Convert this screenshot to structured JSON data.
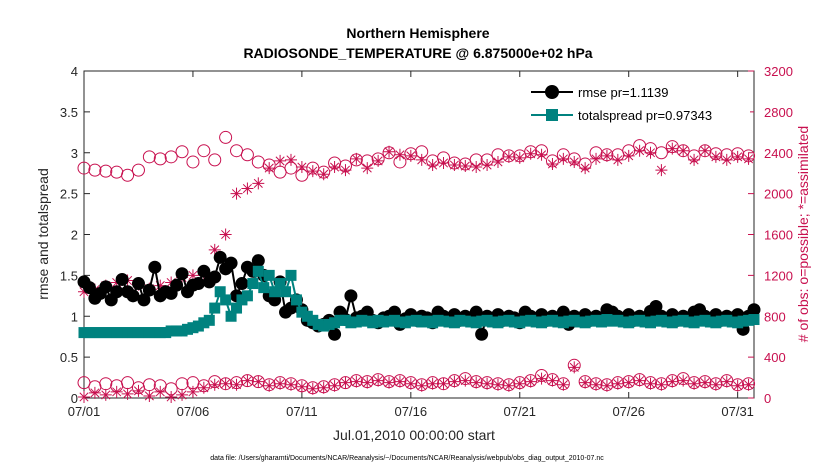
{
  "chart_data": {
    "type": "line",
    "title": "Northern Hemisphere",
    "subtitle": "RADIOSONDE_TEMPERATURE @ 6.875000e+02 hPa",
    "xlabel": "Jul.01,2010 00:00:00 start",
    "ylabel": "rmse and totalspread",
    "y2label": "# of obs: o=possible; *=assimilated",
    "xlim": [
      0,
      30.75
    ],
    "ylim": [
      0,
      4
    ],
    "y2lim": [
      0,
      3200
    ],
    "x_ticks": [
      0,
      5,
      10,
      15,
      20,
      25,
      30
    ],
    "x_tick_labels": [
      "07/01",
      "07/06",
      "07/11",
      "07/16",
      "07/21",
      "07/26",
      "07/31"
    ],
    "y_ticks": [
      "0",
      "0.5",
      "1",
      "1.5",
      "2",
      "2.5",
      "3",
      "3.5",
      "4"
    ],
    "y2_ticks": [
      "0",
      "400",
      "800",
      "1200",
      "1600",
      "2000",
      "2400",
      "2800",
      "3200"
    ],
    "legend": [
      "rmse pr=1.1139",
      "totalspread pr=0.97343"
    ],
    "legend_position": "top-right",
    "footnote": "data file: /Users/gharamti/Documents/NCAR/Reanalysis/~/Documents/NCAR/Reanalysis/webpub/obs_diag_output_2010-07.nc",
    "colors": {
      "rmse": "#000000",
      "totalspread": "#00827f",
      "obs_count": "#c8104f",
      "axis": "#262626"
    },
    "series": [
      {
        "name": "rmse pr=1.1139",
        "x": [
          0,
          0.25,
          0.5,
          0.75,
          1,
          1.25,
          1.5,
          1.75,
          2,
          2.25,
          2.5,
          2.75,
          3,
          3.25,
          3.5,
          3.75,
          4,
          4.25,
          4.5,
          4.75,
          5,
          5.25,
          5.5,
          5.75,
          6,
          6.25,
          6.5,
          6.75,
          7,
          7.25,
          7.5,
          7.75,
          8,
          8.25,
          8.5,
          8.75,
          9,
          9.25,
          9.5,
          9.75,
          10,
          10.25,
          10.5,
          10.75,
          11,
          11.25,
          11.5,
          11.75,
          12,
          12.25,
          12.5,
          12.75,
          13,
          13.25,
          13.5,
          13.75,
          14,
          14.25,
          14.5,
          14.75,
          15,
          15.25,
          15.5,
          15.75,
          16,
          16.25,
          16.5,
          16.75,
          17,
          17.25,
          17.5,
          17.75,
          18,
          18.25,
          18.5,
          18.75,
          19,
          19.25,
          19.5,
          19.75,
          20,
          20.25,
          20.5,
          20.75,
          21,
          21.25,
          21.5,
          21.75,
          22,
          22.25,
          22.5,
          22.75,
          23,
          23.25,
          23.5,
          23.75,
          24,
          24.25,
          24.5,
          24.75,
          25,
          25.25,
          25.5,
          25.75,
          26,
          26.25,
          26.5,
          26.75,
          27,
          27.25,
          27.5,
          27.75,
          28,
          28.25,
          28.5,
          28.75,
          29,
          29.25,
          29.5,
          29.75,
          30,
          30.25,
          30.5,
          30.75
        ],
        "values": [
          1.42,
          1.35,
          1.22,
          1.28,
          1.36,
          1.2,
          1.3,
          1.45,
          1.3,
          1.25,
          1.4,
          1.2,
          1.32,
          1.6,
          1.25,
          1.3,
          1.28,
          1.38,
          1.52,
          1.3,
          1.38,
          1.4,
          1.55,
          1.42,
          1.48,
          1.72,
          1.58,
          1.65,
          1.25,
          1.4,
          1.6,
          1.55,
          1.68,
          1.5,
          1.25,
          1.2,
          1.42,
          1.05,
          1.1,
          1.2,
          1.08,
          0.95,
          0.92,
          0.88,
          0.9,
          0.95,
          0.78,
          1.05,
          0.96,
          1.25,
          0.98,
          1.0,
          1.05,
          0.95,
          0.92,
          0.98,
          1.0,
          1.05,
          0.9,
          0.97,
          1.02,
          0.95,
          1.0,
          0.98,
          0.92,
          1.05,
          1.0,
          0.97,
          1.02,
          0.95,
          1.0,
          0.98,
          1.05,
          0.78,
          1.0,
          0.97,
          1.02,
          0.95,
          1.0,
          0.98,
          0.92,
          1.05,
          1.0,
          0.97,
          1.02,
          0.95,
          1.0,
          0.98,
          1.05,
          0.9,
          1.0,
          0.97,
          1.02,
          0.95,
          1.0,
          0.98,
          1.08,
          1.05,
          1.0,
          0.97,
          1.02,
          0.95,
          1.0,
          0.98,
          1.06,
          1.12,
          1.0,
          0.97,
          1.02,
          0.95,
          1.0,
          0.98,
          1.05,
          1.08,
          1.0,
          0.97,
          1.02,
          0.95,
          1.0,
          0.98,
          1.02,
          0.84,
          1.0,
          1.08
        ]
      },
      {
        "name": "totalspread pr=0.97343",
        "x": [
          0,
          0.25,
          0.5,
          0.75,
          1,
          1.25,
          1.5,
          1.75,
          2,
          2.25,
          2.5,
          2.75,
          3,
          3.25,
          3.5,
          3.75,
          4,
          4.25,
          4.5,
          4.75,
          5,
          5.25,
          5.5,
          5.75,
          6,
          6.25,
          6.5,
          6.75,
          7,
          7.25,
          7.5,
          7.75,
          8,
          8.25,
          8.5,
          8.75,
          9,
          9.25,
          9.5,
          9.75,
          10,
          10.25,
          10.5,
          10.75,
          11,
          11.25,
          11.5,
          11.75,
          12,
          12.25,
          12.5,
          12.75,
          13,
          13.25,
          13.5,
          13.75,
          14,
          14.25,
          14.5,
          14.75,
          15,
          15.25,
          15.5,
          15.75,
          16,
          16.25,
          16.5,
          16.75,
          17,
          17.25,
          17.5,
          17.75,
          18,
          18.25,
          18.5,
          18.75,
          19,
          19.25,
          19.5,
          19.75,
          20,
          20.25,
          20.5,
          20.75,
          21,
          21.25,
          21.5,
          21.75,
          22,
          22.25,
          22.5,
          22.75,
          23,
          23.25,
          23.5,
          23.75,
          24,
          24.25,
          24.5,
          24.75,
          25,
          25.25,
          25.5,
          25.75,
          26,
          26.25,
          26.5,
          26.75,
          27,
          27.25,
          27.5,
          27.75,
          28,
          28.25,
          28.5,
          28.75,
          29,
          29.25,
          29.5,
          29.75,
          30,
          30.25,
          30.5,
          30.75
        ],
        "values": [
          0.8,
          0.8,
          0.8,
          0.8,
          0.8,
          0.8,
          0.8,
          0.8,
          0.8,
          0.8,
          0.8,
          0.8,
          0.8,
          0.8,
          0.8,
          0.8,
          0.82,
          0.82,
          0.82,
          0.84,
          0.86,
          0.88,
          0.92,
          0.95,
          1.1,
          1.3,
          1.2,
          1.0,
          1.1,
          1.2,
          1.25,
          1.4,
          1.55,
          1.35,
          1.5,
          1.3,
          1.4,
          1.3,
          1.5,
          1.2,
          1.05,
          1.0,
          0.95,
          0.9,
          0.88,
          0.9,
          0.92,
          0.95,
          0.95,
          0.92,
          0.93,
          0.95,
          0.94,
          0.92,
          0.95,
          0.93,
          0.94,
          0.95,
          0.93,
          0.92,
          0.94,
          0.95,
          0.93,
          0.94,
          0.92,
          0.95,
          0.94,
          0.93,
          0.92,
          0.95,
          0.94,
          0.93,
          0.92,
          0.94,
          0.95,
          0.93,
          0.92,
          0.94,
          0.95,
          0.93,
          0.92,
          0.94,
          0.95,
          0.93,
          0.92,
          0.94,
          0.95,
          0.93,
          0.92,
          0.94,
          0.95,
          0.93,
          0.92,
          0.94,
          0.95,
          0.93,
          0.96,
          0.94,
          0.95,
          0.93,
          0.92,
          0.94,
          0.95,
          0.93,
          0.92,
          0.94,
          0.95,
          0.93,
          0.92,
          0.94,
          0.95,
          0.93,
          0.92,
          0.94,
          0.95,
          0.93,
          0.92,
          0.94,
          0.95,
          0.93,
          0.92,
          0.94,
          0.95,
          0.96
        ]
      },
      {
        "name": "possible obs (o)",
        "axis": "right",
        "marker": "circle",
        "x": [
          0,
          0.5,
          1,
          1.5,
          2,
          2.5,
          3,
          3.5,
          4,
          4.5,
          5,
          5.5,
          6,
          6.5,
          7,
          7.5,
          8,
          8.5,
          9,
          9.5,
          10,
          10.5,
          11,
          11.5,
          12,
          12.5,
          13,
          13.5,
          14,
          14.5,
          15,
          15.5,
          16,
          16.5,
          17,
          17.5,
          18,
          18.5,
          19,
          19.5,
          20,
          20.5,
          21,
          21.5,
          22,
          22.5,
          23,
          23.5,
          24,
          24.5,
          25,
          25.5,
          26,
          26.5,
          27,
          27.5,
          28,
          28.5,
          29,
          29.5,
          30,
          30.5
        ],
        "values": [
          2250,
          2230,
          2220,
          2210,
          2180,
          2230,
          2360,
          2340,
          2360,
          2410,
          2310,
          2420,
          2330,
          2550,
          2420,
          2380,
          2310,
          2280,
          2210,
          2250,
          2180,
          2250,
          2210,
          2300,
          2270,
          2330,
          2320,
          2340,
          2400,
          2310,
          2390,
          2410,
          2320,
          2350,
          2300,
          2290,
          2330,
          2330,
          2380,
          2370,
          2370,
          2410,
          2420,
          2320,
          2380,
          2340,
          2290,
          2400,
          2380,
          2380,
          2420,
          2470,
          2440,
          2400,
          2460,
          2420,
          2370,
          2420,
          2390,
          2380,
          2390,
          2370
        ]
      },
      {
        "name": "assimilated obs (*)",
        "axis": "right",
        "marker": "star",
        "x": [
          0,
          0.5,
          1,
          1.5,
          2,
          2.5,
          3,
          3.5,
          4,
          4.5,
          5,
          5.5,
          6,
          6.5,
          7,
          7.5,
          8,
          8.5,
          9,
          9.5,
          10,
          10.5,
          11,
          11.5,
          12,
          12.5,
          13,
          13.5,
          14,
          14.5,
          15,
          15.5,
          16,
          16.5,
          17,
          17.5,
          18,
          18.5,
          19,
          19.5,
          20,
          20.5,
          21,
          21.5,
          22,
          22.5,
          23,
          23.5,
          24,
          24.5,
          25,
          25.5,
          26,
          26.5,
          27,
          27.5,
          28,
          28.5,
          29,
          29.5,
          30,
          30.5
        ],
        "values": [
          1040,
          1060,
          1100,
          1130,
          1150,
          1110,
          1070,
          1100,
          1130,
          1180,
          1200,
          1210,
          1450,
          1600,
          2000,
          2050,
          2100,
          2250,
          2320,
          2330,
          2260,
          2220,
          2190,
          2260,
          2230,
          2340,
          2250,
          2320,
          2410,
          2380,
          2370,
          2330,
          2280,
          2300,
          2280,
          2270,
          2260,
          2280,
          2310,
          2360,
          2350,
          2390,
          2380,
          2290,
          2340,
          2310,
          2250,
          2340,
          2370,
          2330,
          2370,
          2420,
          2400,
          2230,
          2440,
          2420,
          2330,
          2420,
          2360,
          2330,
          2360,
          2340
        ]
      },
      {
        "name": "possible obs (o) bottom",
        "axis": "right",
        "marker": "circle",
        "x": [
          0,
          0.5,
          1,
          1.5,
          2,
          2.5,
          3,
          3.5,
          4,
          4.5,
          5,
          5.5,
          6,
          6.5,
          7,
          7.5,
          8,
          8.5,
          9,
          9.5,
          10,
          10.5,
          11,
          11.5,
          12,
          12.5,
          13,
          13.5,
          14,
          14.5,
          15,
          15.5,
          16,
          16.5,
          17,
          17.5,
          18,
          18.5,
          19,
          19.5,
          20,
          20.5,
          21,
          21.5,
          22,
          22.5,
          23,
          23.5,
          24,
          24.5,
          25,
          25.5,
          26,
          26.5,
          27,
          27.5,
          28,
          28.5,
          29,
          29.5,
          30,
          30.5
        ],
        "values": [
          150,
          110,
          140,
          120,
          150,
          100,
          130,
          120,
          90,
          140,
          150,
          120,
          160,
          140,
          150,
          170,
          160,
          130,
          150,
          140,
          120,
          100,
          110,
          130,
          150,
          170,
          160,
          180,
          160,
          170,
          150,
          130,
          150,
          140,
          170,
          190,
          160,
          150,
          140,
          130,
          150,
          170,
          220,
          180,
          140,
          320,
          160,
          140,
          130,
          150,
          160,
          180,
          150,
          140,
          170,
          190,
          150,
          160,
          140,
          170,
          130,
          140
        ]
      },
      {
        "name": "assimilated obs (*) bottom",
        "axis": "right",
        "marker": "star",
        "x": [
          0,
          0.5,
          1,
          1.5,
          2,
          2.5,
          3,
          3.5,
          4,
          4.5,
          5,
          5.5,
          6,
          6.5,
          7,
          7.5,
          8,
          8.5,
          9,
          9.5,
          10,
          10.5,
          11,
          11.5,
          12,
          12.5,
          13,
          13.5,
          14,
          14.5,
          15,
          15.5,
          16,
          16.5,
          17,
          17.5,
          18,
          18.5,
          19,
          19.5,
          20,
          20.5,
          21,
          21.5,
          22,
          22.5,
          23,
          23.5,
          24,
          24.5,
          25,
          25.5,
          26,
          26.5,
          27,
          27.5,
          28,
          28.5,
          29,
          29.5,
          30,
          30.5
        ],
        "values": [
          10,
          50,
          30,
          60,
          40,
          70,
          20,
          60,
          10,
          30,
          60,
          100,
          130,
          140,
          130,
          170,
          160,
          120,
          140,
          130,
          110,
          90,
          100,
          120,
          150,
          160,
          150,
          170,
          150,
          160,
          140,
          120,
          140,
          140,
          160,
          170,
          150,
          140,
          130,
          120,
          140,
          160,
          190,
          170,
          130,
          300,
          150,
          130,
          120,
          140,
          150,
          170,
          140,
          130,
          160,
          170,
          140,
          150,
          130,
          160,
          120,
          130
        ]
      }
    ]
  }
}
